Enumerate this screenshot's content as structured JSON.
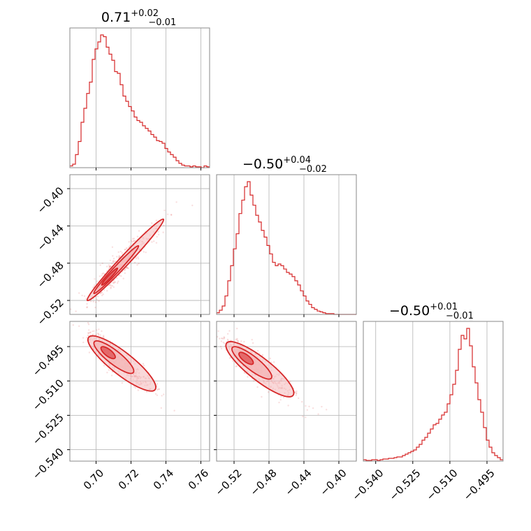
{
  "figure": {
    "kind": "corner-plot",
    "accent_color": "#d62728",
    "fill_color": "#f4b8b9",
    "grid_color": "#bbbbbb",
    "frame_color": "#888888"
  },
  "chart_data": [
    {
      "type": "histogram",
      "panel": "1-1",
      "title_value": "0.71",
      "title_plus": "+0.02",
      "title_minus": "−0.01",
      "xlim": [
        0.685,
        0.765
      ],
      "xticks": [
        0.7,
        0.72,
        0.74,
        0.76
      ],
      "bin_start": 0.685,
      "bin_width": 0.0016,
      "counts": [
        2,
        4,
        15,
        30,
        52,
        68,
        85,
        98,
        124,
        136,
        144,
        152,
        150,
        138,
        130,
        123,
        110,
        108,
        95,
        82,
        76,
        70,
        65,
        58,
        54,
        52,
        48,
        45,
        42,
        38,
        35,
        31,
        30,
        28,
        22,
        18,
        15,
        12,
        8,
        5,
        3,
        2,
        2,
        1,
        2,
        1,
        1,
        0,
        2,
        1
      ],
      "grid": true
    },
    {
      "type": "histogram",
      "panel": "2-2",
      "title_value": "−0.50",
      "title_plus": "+0.04",
      "title_minus": "−0.02",
      "xlim": [
        -0.54,
        -0.38
      ],
      "xticks": [
        -0.52,
        -0.48,
        -0.44,
        -0.4
      ],
      "xtick_labels": [
        "−0.52",
        "−0.48",
        "−0.44",
        "−0.40"
      ],
      "bin_start": -0.54,
      "bin_width": 0.0032,
      "counts": [
        2,
        5,
        10,
        22,
        40,
        58,
        78,
        96,
        120,
        136,
        152,
        158,
        142,
        130,
        118,
        110,
        100,
        92,
        82,
        72,
        62,
        58,
        60,
        58,
        54,
        50,
        48,
        45,
        40,
        35,
        28,
        22,
        16,
        12,
        8,
        6,
        4,
        3,
        2,
        1,
        1,
        1,
        0,
        0,
        0,
        0,
        0,
        0,
        0,
        0
      ],
      "grid": true
    },
    {
      "type": "histogram",
      "panel": "3-3",
      "title_value": "−0.50",
      "title_plus": "+0.01",
      "title_minus": "−0.01",
      "xlim": [
        -0.545,
        -0.4885
      ],
      "xticks": [
        -0.54,
        -0.525,
        -0.51,
        -0.495
      ],
      "xtick_labels": [
        "−0.540",
        "−0.525",
        "−0.510",
        "−0.495"
      ],
      "bin_start": -0.545,
      "bin_width": 0.00113,
      "counts": [
        2,
        1,
        1,
        2,
        2,
        1,
        2,
        3,
        3,
        4,
        4,
        5,
        6,
        6,
        8,
        10,
        12,
        14,
        16,
        20,
        24,
        30,
        34,
        40,
        46,
        52,
        54,
        60,
        66,
        70,
        82,
        95,
        110,
        130,
        160,
        180,
        175,
        190,
        165,
        135,
        112,
        88,
        70,
        48,
        30,
        20,
        12,
        8,
        5,
        2
      ],
      "grid": true
    },
    {
      "type": "scatter-contour",
      "panel": "2-1",
      "xlim": [
        0.685,
        0.765
      ],
      "ylim": [
        -0.535,
        -0.385
      ],
      "yticks": [
        -0.52,
        -0.48,
        -0.44,
        -0.4
      ],
      "ytick_labels": [
        "−0.52",
        "−0.48",
        "−0.44",
        "−0.40"
      ],
      "relation": {
        "slope": 2.0,
        "intercept": -1.91,
        "x_mode": 0.705
      },
      "grid": true
    },
    {
      "type": "scatter-contour",
      "panel": "3-1",
      "xlim": [
        0.685,
        0.765
      ],
      "ylim": [
        -0.545,
        -0.484
      ],
      "yticks": [
        -0.54,
        -0.525,
        -0.51,
        -0.495
      ],
      "ytick_labels": [
        "−0.540",
        "−0.525",
        "−0.510",
        "−0.495"
      ],
      "relation": {
        "slope": -0.6,
        "intercept": -0.0735,
        "x_mode": 0.705
      },
      "grid": true
    },
    {
      "type": "scatter-contour",
      "panel": "3-2",
      "xlim": [
        -0.54,
        -0.38
      ],
      "ylim": [
        -0.545,
        -0.484
      ],
      "relation": {
        "slope": -0.3,
        "intercept": -0.652,
        "x_mode": -0.51
      },
      "grid": true
    }
  ]
}
